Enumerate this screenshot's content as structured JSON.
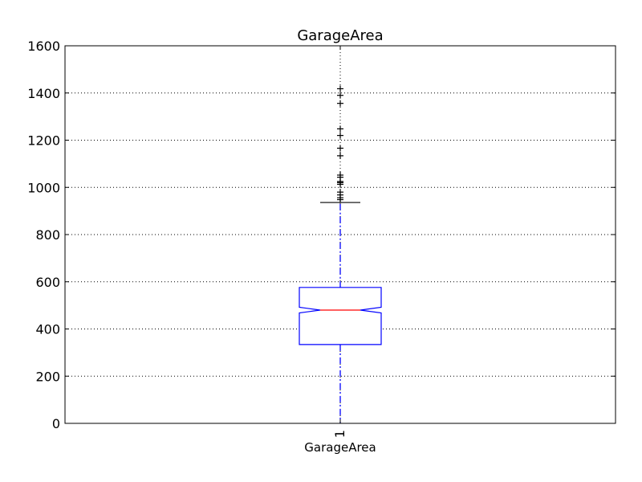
{
  "chart_data": {
    "type": "boxplot",
    "title": "GarageArea",
    "xlabel": "GarageArea",
    "ylabel": "",
    "ylim": [
      0,
      1600
    ],
    "yticks": [
      0,
      200,
      400,
      600,
      800,
      1000,
      1200,
      1400,
      1600
    ],
    "categories": [
      "1"
    ],
    "grid": true,
    "notched": true,
    "series": [
      {
        "category": "1",
        "whisker_low": 0,
        "q1": 334,
        "median": 480,
        "q3": 576,
        "whisker_high": 936,
        "notch_low": 468,
        "notch_high": 492,
        "outliers": [
          948,
          956,
          968,
          980,
          1013,
          1020,
          1025,
          1043,
          1052,
          1134,
          1166,
          1220,
          1248,
          1356,
          1390,
          1418
        ]
      }
    ],
    "colors": {
      "box": "#0000ff",
      "median": "#ff0000",
      "whisker": "#0000ff",
      "cap": "#000000",
      "outlier": "#000000",
      "grid": "#000000"
    }
  }
}
